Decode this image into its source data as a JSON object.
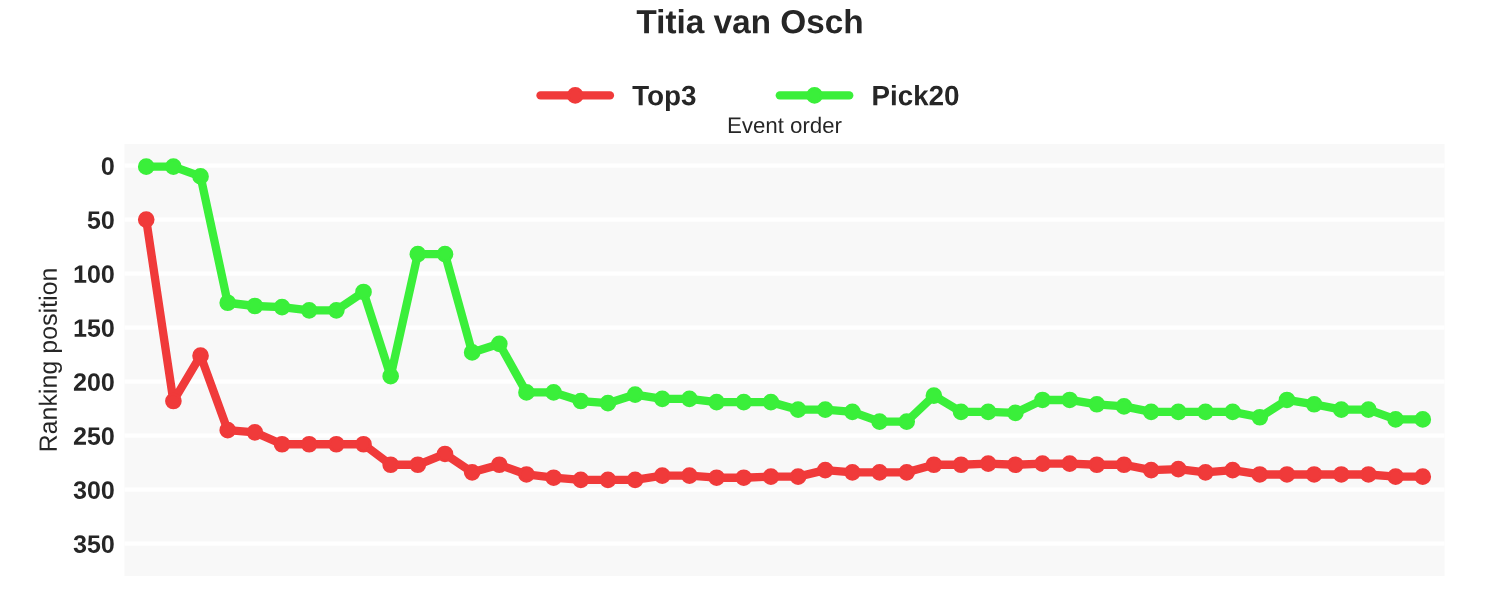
{
  "chart_data": {
    "type": "line",
    "title": "Titia van Osch",
    "xlabel": "Event order",
    "ylabel": "Ranking position",
    "categories": [
      null,
      null,
      null,
      null,
      null,
      null,
      null,
      null,
      null,
      null,
      null,
      null,
      null,
      null,
      null,
      null,
      null,
      null,
      null,
      null,
      null,
      null,
      null,
      null,
      null,
      null,
      null,
      null,
      null,
      null,
      null,
      null,
      null,
      null,
      null,
      null,
      null,
      null,
      null,
      null,
      null,
      null,
      null,
      null,
      null,
      null,
      null,
      null
    ],
    "series": [
      {
        "name": "Top3",
        "color": "#f03a3a",
        "values": [
          50,
          218,
          176,
          245,
          247,
          258,
          258,
          258,
          258,
          277,
          277,
          267,
          284,
          277,
          286,
          289,
          291,
          291,
          291,
          287,
          287,
          289,
          289,
          288,
          288,
          282,
          284,
          284,
          284,
          277,
          277,
          276,
          277,
          276,
          276,
          277,
          277,
          282,
          281,
          284,
          282,
          286,
          286,
          286,
          286,
          286,
          288,
          288
        ]
      },
      {
        "name": "Pick20",
        "color": "#3aef3a",
        "values": [
          1,
          1,
          10,
          127,
          130,
          131,
          134,
          134,
          117,
          195,
          82,
          82,
          173,
          165,
          210,
          210,
          218,
          220,
          212,
          216,
          216,
          219,
          219,
          219,
          226,
          226,
          228,
          237,
          237,
          213,
          228,
          228,
          229,
          217,
          217,
          221,
          223,
          228,
          228,
          228,
          228,
          233,
          217,
          221,
          226,
          226,
          235,
          235
        ]
      }
    ],
    "ylim": [
      380,
      -20
    ],
    "yticks": [
      0,
      50,
      100,
      150,
      200,
      250,
      300,
      350
    ],
    "grid": "y",
    "legend": "top",
    "marker": "circle",
    "line_style": "solid",
    "tick_labels": "y"
  }
}
